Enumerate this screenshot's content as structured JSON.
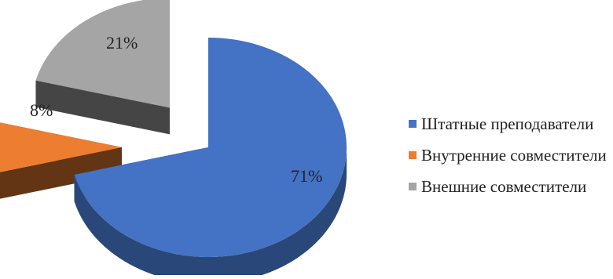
{
  "chart_data": {
    "type": "pie",
    "title": "",
    "categories": [
      "Штатные преподаватели",
      "Внутренние совместители",
      "Внешние совместители"
    ],
    "values": [
      71,
      8,
      21
    ],
    "data_labels": [
      "71%",
      "8%",
      "21%"
    ],
    "colors": [
      "#4472c4",
      "#ed7d31",
      "#a5a5a5"
    ],
    "legend_position": "right",
    "style": "3d-exploded"
  }
}
